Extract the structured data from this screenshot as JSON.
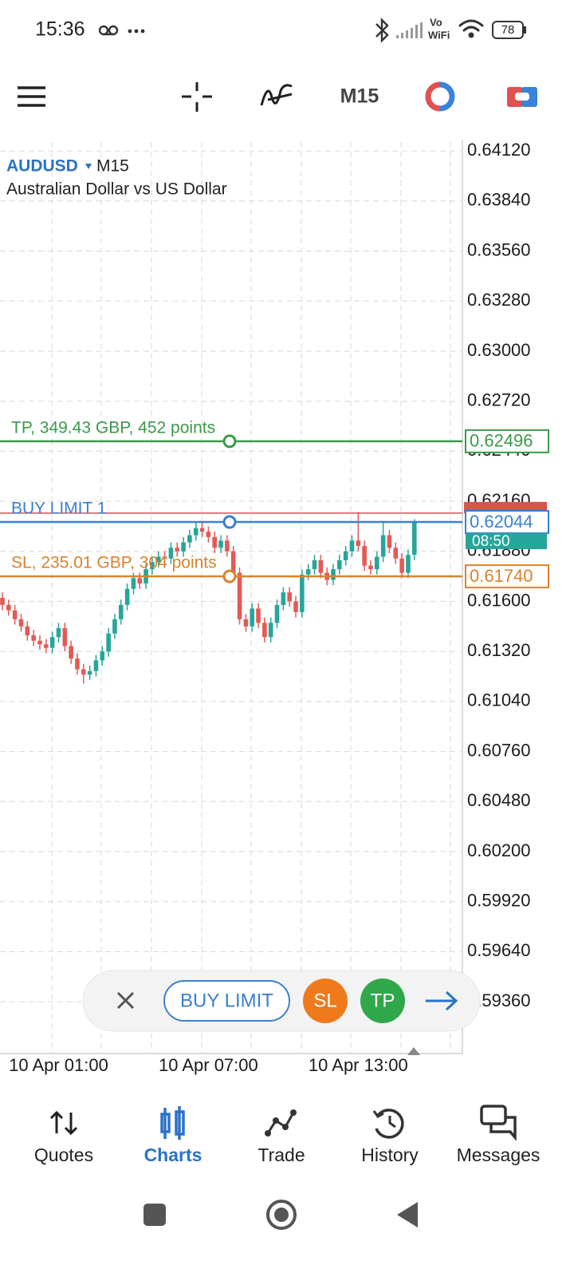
{
  "status_bar": {
    "time": "15:36",
    "vo": "Vo",
    "wifi": "WiFi",
    "battery": "78"
  },
  "toolbar": {
    "timeframe": "M15"
  },
  "chart_header": {
    "symbol": "AUDUSD",
    "timeframe": "M15",
    "description": "Australian Dollar vs US Dollar"
  },
  "chart_data": {
    "type": "candlestick",
    "ylim": [
      0.5907,
      0.6417
    ],
    "yticks": [
      {
        "value": 0.6412,
        "label": "0.64120"
      },
      {
        "value": 0.6384,
        "label": "0.63840"
      },
      {
        "value": 0.6356,
        "label": "0.63560"
      },
      {
        "value": 0.6328,
        "label": "0.63280"
      },
      {
        "value": 0.63,
        "label": "0.63000"
      },
      {
        "value": 0.6272,
        "label": "0.62720"
      },
      {
        "value": 0.6244,
        "label": "0.62440"
      },
      {
        "value": 0.6216,
        "label": "0.62160"
      },
      {
        "value": 0.6188,
        "label": "0.61880"
      },
      {
        "value": 0.616,
        "label": "0.61600"
      },
      {
        "value": 0.6132,
        "label": "0.61320"
      },
      {
        "value": 0.6104,
        "label": "0.61040"
      },
      {
        "value": 0.6076,
        "label": "0.60760"
      },
      {
        "value": 0.6048,
        "label": "0.60480"
      },
      {
        "value": 0.602,
        "label": "0.60200"
      },
      {
        "value": 0.5992,
        "label": "0.59920"
      },
      {
        "value": 0.5964,
        "label": "0.59640"
      },
      {
        "value": 0.5936,
        "label": "0.59360"
      }
    ],
    "grid": true,
    "up_color": "#26a69a",
    "down_color": "#e35a55",
    "categories": [
      null,
      null,
      null,
      null,
      null,
      null,
      null,
      null,
      null,
      "10 Apr 01:00",
      null,
      null,
      null,
      null,
      null,
      null,
      null,
      null,
      null,
      null,
      null,
      null,
      null,
      null,
      null,
      null,
      null,
      null,
      null,
      null,
      null,
      null,
      null,
      "10 Apr 07:00",
      null,
      null,
      null,
      null,
      null,
      null,
      null,
      null,
      null,
      null,
      null,
      null,
      null,
      null,
      null,
      null,
      null,
      null,
      null,
      null,
      null,
      null,
      null,
      "10 Apr 13:00",
      null,
      null,
      null,
      null,
      null,
      null,
      null,
      null,
      null
    ],
    "open": [
      0.6162,
      0.6158,
      0.6155,
      0.615,
      0.6146,
      0.6141,
      0.6138,
      0.6136,
      0.6134,
      0.614,
      0.6145,
      0.6135,
      0.6128,
      0.6122,
      0.6119,
      0.6121,
      0.6127,
      0.6132,
      0.6142,
      0.615,
      0.6158,
      0.6167,
      0.6173,
      0.617,
      0.6178,
      0.6182,
      0.6185,
      0.6184,
      0.619,
      0.6188,
      0.6193,
      0.6197,
      0.6201,
      0.6199,
      0.6196,
      0.619,
      0.6194,
      0.6188,
      0.6176,
      0.615,
      0.6146,
      0.6156,
      0.6148,
      0.614,
      0.6148,
      0.6158,
      0.6165,
      0.616,
      0.6154,
      0.6175,
      0.6178,
      0.6183,
      0.6176,
      0.6172,
      0.6178,
      0.6183,
      0.6188,
      0.6194,
      0.6191,
      0.618,
      0.6178,
      0.6185,
      0.6197,
      0.619,
      0.6184,
      0.6176,
      0.6186
    ],
    "high": [
      0.6165,
      0.6161,
      0.6158,
      0.6153,
      0.6149,
      0.6144,
      0.6141,
      0.6139,
      0.6143,
      0.6148,
      0.6148,
      0.6138,
      0.6131,
      0.6125,
      0.6124,
      0.613,
      0.6135,
      0.6145,
      0.6153,
      0.6161,
      0.617,
      0.6176,
      0.6176,
      0.6181,
      0.6185,
      0.6188,
      0.6188,
      0.6193,
      0.6193,
      0.6196,
      0.62,
      0.6204,
      0.6204,
      0.6202,
      0.6199,
      0.6197,
      0.6197,
      0.6191,
      0.6179,
      0.6153,
      0.6159,
      0.6159,
      0.6151,
      0.6151,
      0.6161,
      0.6168,
      0.6168,
      0.6163,
      0.6178,
      0.6181,
      0.6186,
      0.6186,
      0.6179,
      0.6181,
      0.6186,
      0.6191,
      0.6197,
      0.621,
      0.6194,
      0.6183,
      0.6188,
      0.6205,
      0.62,
      0.6193,
      0.6187,
      0.6189,
      0.6206
    ],
    "low": [
      0.6155,
      0.6152,
      0.6147,
      0.6143,
      0.6138,
      0.6135,
      0.6133,
      0.6131,
      0.6131,
      0.6137,
      0.6132,
      0.6125,
      0.6119,
      0.6114,
      0.6116,
      0.6118,
      0.6124,
      0.6129,
      0.6139,
      0.6147,
      0.6155,
      0.6164,
      0.6167,
      0.6167,
      0.6175,
      0.6179,
      0.6181,
      0.6181,
      0.6185,
      0.6185,
      0.619,
      0.6194,
      0.6196,
      0.6193,
      0.6187,
      0.6187,
      0.6185,
      0.6173,
      0.6147,
      0.6143,
      0.6143,
      0.6145,
      0.6137,
      0.6137,
      0.6145,
      0.6155,
      0.6157,
      0.6151,
      0.6151,
      0.6172,
      0.6175,
      0.6173,
      0.6169,
      0.6169,
      0.6175,
      0.618,
      0.6185,
      0.6188,
      0.6177,
      0.6175,
      0.6175,
      0.6182,
      0.6187,
      0.6181,
      0.6173,
      0.6173,
      0.6183
    ],
    "close": [
      0.6158,
      0.6155,
      0.615,
      0.6146,
      0.6141,
      0.6138,
      0.6136,
      0.6134,
      0.614,
      0.6145,
      0.6135,
      0.6128,
      0.6122,
      0.6119,
      0.6121,
      0.6127,
      0.6132,
      0.6142,
      0.615,
      0.6158,
      0.6167,
      0.6173,
      0.617,
      0.6178,
      0.6182,
      0.6185,
      0.6184,
      0.619,
      0.6188,
      0.6193,
      0.6197,
      0.6201,
      0.6199,
      0.6196,
      0.619,
      0.6194,
      0.6188,
      0.6176,
      0.615,
      0.6146,
      0.6156,
      0.6148,
      0.614,
      0.6148,
      0.6158,
      0.6165,
      0.616,
      0.6154,
      0.6175,
      0.6178,
      0.6183,
      0.6176,
      0.6172,
      0.6178,
      0.6183,
      0.6188,
      0.6194,
      0.6191,
      0.618,
      0.6178,
      0.6185,
      0.6197,
      0.619,
      0.6184,
      0.6176,
      0.6186,
      0.6204
    ],
    "ask": 0.62094,
    "ask_color": "#d9534f",
    "order_lines": [
      {
        "name": "TP, 349.43 GBP, 452 points",
        "value": 0.62496,
        "color": "#3a9a4a"
      },
      {
        "name": "BUY LIMIT 1",
        "value": 0.62044,
        "color": "#3a7fd0"
      },
      {
        "name": "SL, 235.01 GBP, 304 points",
        "value": 0.6174,
        "value_label": "0.61740",
        "color": "#d9822b"
      }
    ],
    "countdown": "08:50"
  },
  "order_bar": {
    "buy_limit": "BUY LIMIT",
    "sl": "SL",
    "tp": "TP"
  },
  "bottom_nav": [
    "Quotes",
    "Charts",
    "Trade",
    "History",
    "Messages"
  ]
}
